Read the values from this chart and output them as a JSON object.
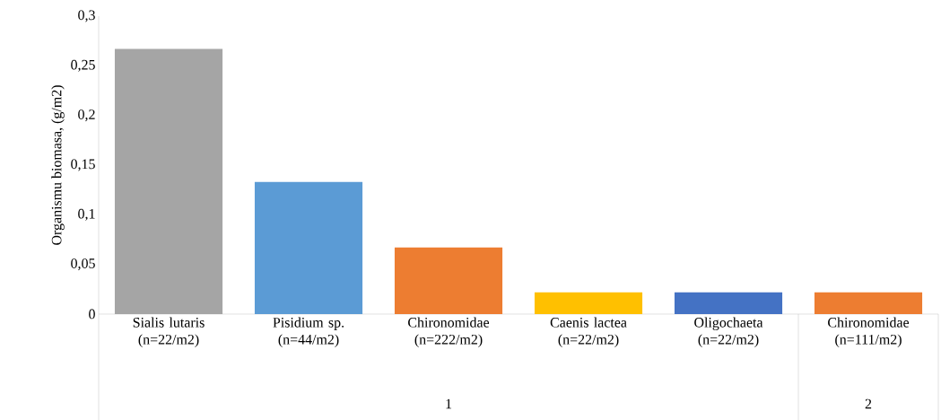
{
  "chart_data": {
    "type": "bar",
    "ylabel": "Organismu biomasa, (g/m2)",
    "categories": [
      "Sialis lutaris (n=22/m2)",
      "Pisidium sp. (n=44/m2)",
      "Chironomidae (n=222/m2)",
      "Caenis lactea (n=22/m2)",
      "Oligochaeta (n=22/m2)",
      "Chironomidae (n=111/m2)"
    ],
    "values": [
      0.267,
      0.133,
      0.067,
      0.022,
      0.022,
      0.022
    ],
    "colors": [
      "#a5a5a5",
      "#5b9bd5",
      "#ed7d31",
      "#ffc000",
      "#4472c4",
      "#ed7d31"
    ],
    "ylim": [
      0,
      0.3
    ],
    "yticks": [
      0,
      {
        "value": 0.05,
        "label": "0,05"
      },
      {
        "value": 0.1,
        "label": "0,1"
      },
      {
        "value": 0.15,
        "label": "0,15"
      },
      {
        "value": 0.2,
        "label": "0,2"
      },
      {
        "value": 0.25,
        "label": "0,25"
      },
      {
        "value": 0.3,
        "label": "0,3"
      }
    ],
    "annotations": [
      "1",
      "2"
    ],
    "grid": false
  }
}
